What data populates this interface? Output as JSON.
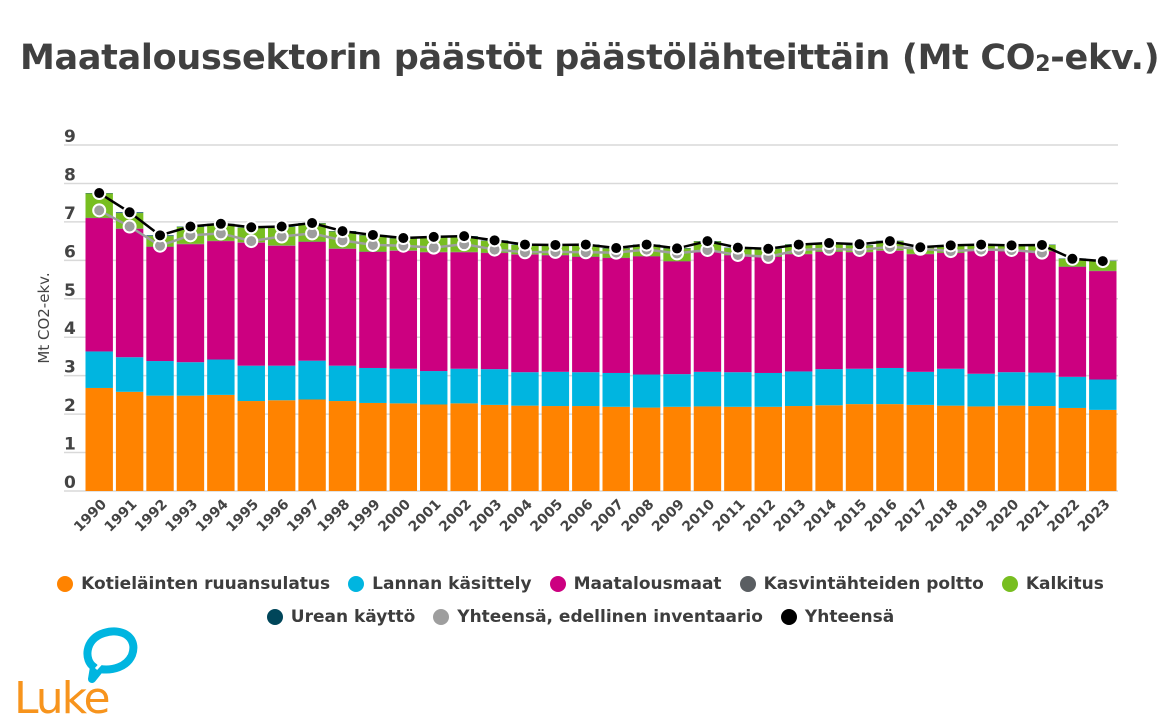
{
  "title_main": "Maatalous­sektorin päästöt päästölähteittäin (Mt CO",
  "title_sub": "2",
  "title_end": "-ekv.)",
  "logo_text": "Luke",
  "chart_data": {
    "type": "bar",
    "stacked": true,
    "title": "Maataloussektorin päästöt päästölähteittäin (Mt CO2-ekv.)",
    "xlabel": "",
    "ylabel": "Mt CO2-ekv.",
    "ylim": [
      0,
      9
    ],
    "yticks": [
      0,
      1,
      2,
      3,
      4,
      5,
      6,
      7,
      8,
      9
    ],
    "grid": true,
    "legend_position": "bottom",
    "categories": [
      "1990",
      "1991",
      "1992",
      "1993",
      "1994",
      "1995",
      "1996",
      "1997",
      "1998",
      "1999",
      "2000",
      "2001",
      "2002",
      "2003",
      "2004",
      "2005",
      "2006",
      "2007",
      "2008",
      "2009",
      "2010",
      "2011",
      "2012",
      "2013",
      "2014",
      "2015",
      "2016",
      "2017",
      "2018",
      "2019",
      "2020",
      "2021",
      "2022",
      "2023"
    ],
    "series": [
      {
        "name": "Kotieläinten ruuansulatus",
        "color": "#ff8300",
        "kind": "bar",
        "values": [
          2.68,
          2.58,
          2.48,
          2.48,
          2.5,
          2.34,
          2.36,
          2.38,
          2.34,
          2.29,
          2.28,
          2.25,
          2.28,
          2.24,
          2.22,
          2.21,
          2.21,
          2.19,
          2.17,
          2.19,
          2.2,
          2.19,
          2.19,
          2.21,
          2.23,
          2.26,
          2.26,
          2.24,
          2.22,
          2.2,
          2.22,
          2.21,
          2.16,
          2.11
        ]
      },
      {
        "name": "Lannan käsittely",
        "color": "#00b5e0",
        "kind": "bar",
        "values": [
          0.95,
          0.9,
          0.9,
          0.87,
          0.92,
          0.92,
          0.9,
          1.01,
          0.92,
          0.91,
          0.9,
          0.87,
          0.9,
          0.93,
          0.87,
          0.89,
          0.88,
          0.88,
          0.86,
          0.85,
          0.9,
          0.9,
          0.88,
          0.9,
          0.94,
          0.92,
          0.94,
          0.86,
          0.96,
          0.85,
          0.87,
          0.87,
          0.81,
          0.79
        ]
      },
      {
        "name": "Maatalousmaat",
        "color": "#cc0080",
        "kind": "bar",
        "values": [
          3.47,
          3.34,
          2.97,
          3.07,
          3.08,
          3.2,
          3.12,
          3.09,
          3.04,
          3.02,
          3.07,
          3.09,
          3.03,
          3.02,
          3.06,
          3.03,
          3.0,
          2.99,
          3.07,
          2.93,
          3.11,
          3.04,
          3.02,
          3.05,
          3.05,
          3.03,
          3.05,
          3.06,
          3.01,
          3.2,
          3.14,
          3.15,
          2.86,
          2.82
        ]
      },
      {
        "name": "Kasvintähteiden poltto",
        "color": "#5a5e62",
        "kind": "bar",
        "values": [
          0.01,
          0.01,
          0.01,
          0.01,
          0.01,
          0.01,
          0.01,
          0.01,
          0.01,
          0.01,
          0.01,
          0.01,
          0.01,
          0.01,
          0.01,
          0.01,
          0.01,
          0.01,
          0.01,
          0.01,
          0.01,
          0.01,
          0.01,
          0.01,
          0.01,
          0.01,
          0.01,
          0.01,
          0.01,
          0.01,
          0.01,
          0.01,
          0.01,
          0.01
        ]
      },
      {
        "name": "Kalkitus",
        "color": "#78be20",
        "kind": "bar",
        "values": [
          0.63,
          0.4,
          0.27,
          0.44,
          0.43,
          0.38,
          0.48,
          0.47,
          0.44,
          0.42,
          0.31,
          0.38,
          0.4,
          0.31,
          0.24,
          0.25,
          0.3,
          0.24,
          0.29,
          0.33,
          0.27,
          0.18,
          0.2,
          0.24,
          0.22,
          0.17,
          0.24,
          0.17,
          0.19,
          0.15,
          0.15,
          0.16,
          0.2,
          0.25
        ]
      },
      {
        "name": "Urean käyttö",
        "color": "#00465a",
        "kind": "bar",
        "values": [
          0.01,
          0.02,
          0.02,
          0.01,
          0.01,
          0.01,
          0.01,
          0.01,
          0.01,
          0.01,
          0.01,
          0.01,
          0.01,
          0.01,
          0.01,
          0.01,
          0.01,
          0.01,
          0.01,
          0.01,
          0.01,
          0.01,
          0.01,
          0.01,
          0.01,
          0.01,
          0.01,
          0.01,
          0.01,
          0.01,
          0.01,
          0.01,
          0.01,
          0.01
        ]
      },
      {
        "name": "Yhteensä, edellinen inventaario",
        "color": "#9e9e9e",
        "kind": "line",
        "values": [
          7.3,
          6.88,
          6.38,
          6.65,
          6.7,
          6.5,
          6.62,
          6.7,
          6.52,
          6.4,
          6.38,
          6.33,
          6.42,
          6.28,
          6.21,
          6.22,
          6.21,
          6.2,
          6.28,
          6.18,
          6.27,
          6.14,
          6.09,
          6.27,
          6.3,
          6.27,
          6.35,
          6.3,
          6.24,
          6.28,
          6.27,
          6.2,
          null,
          null
        ]
      },
      {
        "name": "Yhteensä",
        "color": "#000000",
        "kind": "line",
        "values": [
          7.75,
          7.25,
          6.65,
          6.88,
          6.95,
          6.86,
          6.88,
          6.97,
          6.76,
          6.66,
          6.58,
          6.61,
          6.63,
          6.52,
          6.41,
          6.4,
          6.41,
          6.32,
          6.41,
          6.31,
          6.5,
          6.33,
          6.3,
          6.41,
          6.45,
          6.42,
          6.5,
          6.34,
          6.39,
          6.41,
          6.39,
          6.4,
          6.04,
          5.98
        ]
      }
    ]
  },
  "legend": {
    "row1": [
      {
        "label": "Kotieläinten ruuansulatus",
        "color": "#ff8300"
      },
      {
        "label": "Lannan käsittely",
        "color": "#00b5e0"
      },
      {
        "label": "Maatalousmaat",
        "color": "#cc0080"
      },
      {
        "label": "Kasvintähteiden poltto",
        "color": "#5a5e62"
      },
      {
        "label": "Kalkitus",
        "color": "#78be20"
      }
    ],
    "row2": [
      {
        "label": "Urean käyttö",
        "color": "#00465a"
      },
      {
        "label": "Yhteensä, edellinen inventaario",
        "color": "#9e9e9e"
      },
      {
        "label": "Yhteensä",
        "color": "#000000"
      }
    ]
  },
  "colors": {
    "logo_orange": "#f7941d",
    "logo_blue": "#00b5e0"
  }
}
